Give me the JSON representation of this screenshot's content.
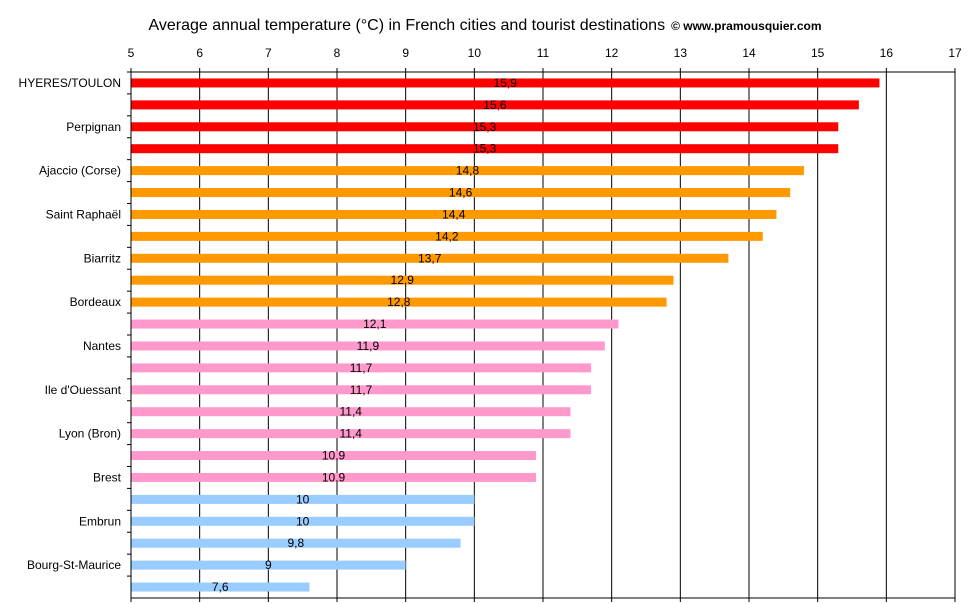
{
  "title": "Average annual temperature (°C) in French cities and tourist destinations",
  "copyright": "© www.pramousquier.com",
  "chart_data": {
    "type": "bar",
    "orientation": "horizontal",
    "title": "Average annual temperature (°C) in French cities and tourist destinations",
    "xlim": [
      5,
      17
    ],
    "xticks": [
      5,
      6,
      7,
      8,
      9,
      10,
      11,
      12,
      13,
      14,
      15,
      16,
      17
    ],
    "grid": "vertical",
    "legend": "none",
    "categories": [
      "HYERES/TOULON",
      "",
      "Perpignan",
      "",
      "Ajaccio (Corse)",
      "",
      "Saint Raphaël",
      "",
      "Biarritz",
      "",
      "Bordeaux",
      "",
      "Nantes",
      "",
      "Ile d'Ouessant",
      "",
      "Lyon (Bron)",
      "",
      "Brest",
      "",
      "Embrun",
      "",
      "Bourg-St-Maurice",
      ""
    ],
    "values": [
      15.9,
      15.6,
      15.3,
      15.3,
      14.8,
      14.6,
      14.4,
      14.2,
      13.7,
      12.9,
      12.8,
      12.1,
      11.9,
      11.7,
      11.7,
      11.4,
      11.4,
      10.9,
      10.9,
      10,
      10,
      9.8,
      9,
      7.6
    ],
    "data_labels": [
      "15,9",
      "15,6",
      "15,3",
      "15,3",
      "14,8",
      "14,6",
      "14,4",
      "14,2",
      "13,7",
      "12,9",
      "12,8",
      "12,1",
      "11,9",
      "11,7",
      "11,7",
      "11,4",
      "11,4",
      "10,9",
      "10,9",
      "10",
      "10",
      "9,8",
      "9",
      "7,6"
    ],
    "bar_colors": [
      "#ff0000",
      "#ff0000",
      "#ff0000",
      "#ff0000",
      "#ff9900",
      "#ff9900",
      "#ff9900",
      "#ff9900",
      "#ff9900",
      "#ff9900",
      "#ff9900",
      "#ff99cc",
      "#ff99cc",
      "#ff99cc",
      "#ff99cc",
      "#ff99cc",
      "#ff99cc",
      "#ff99cc",
      "#ff99cc",
      "#99ccff",
      "#99ccff",
      "#99ccff",
      "#99ccff",
      "#99ccff"
    ]
  }
}
